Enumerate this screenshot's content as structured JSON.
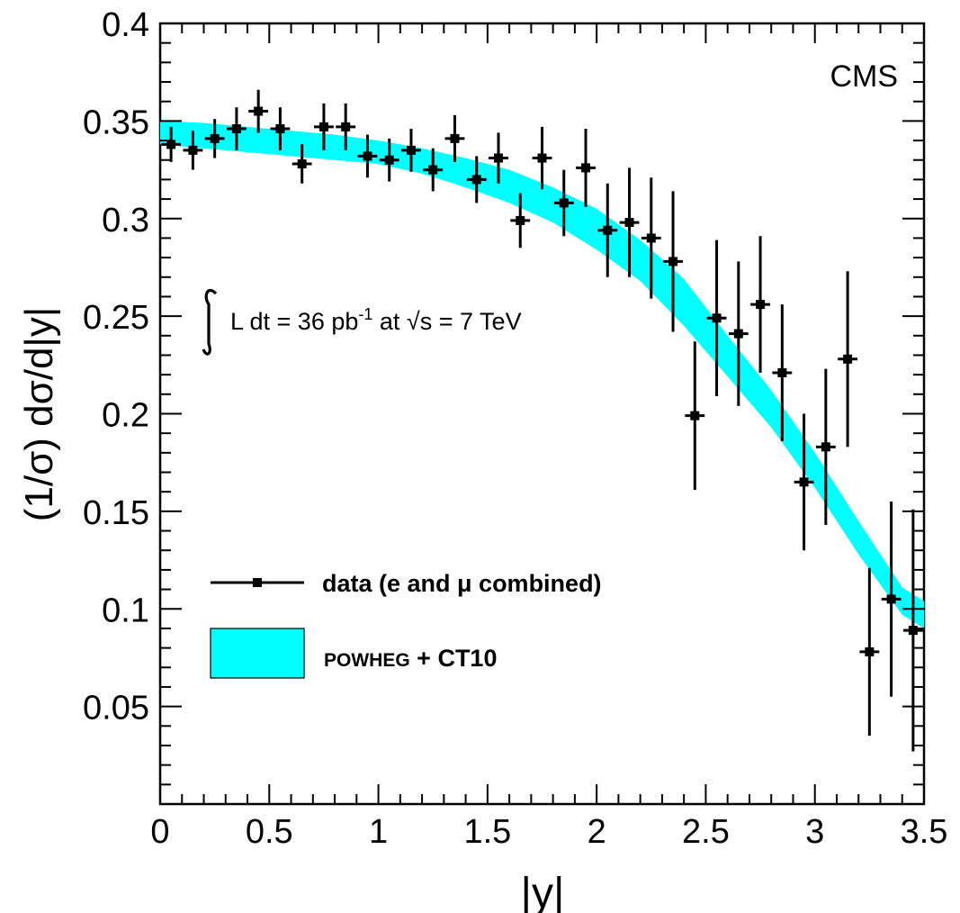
{
  "chart_data": {
    "type": "scatter",
    "title": "",
    "xlabel": "|y|",
    "ylabel": "(1/σ) dσ/d|y|",
    "xlim": [
      0,
      3.5
    ],
    "ylim": [
      0,
      0.4
    ],
    "xticks": [
      "0",
      "0.5",
      "1",
      "1.5",
      "2",
      "2.5",
      "3",
      "3.5"
    ],
    "yticks": [
      "0.05",
      "0.1",
      "0.15",
      "0.2",
      "0.25",
      "0.3",
      "0.35",
      "0.4"
    ],
    "annotation_cms": "CMS",
    "annotation_lumi": {
      "prefix": "L dt = 36 pb",
      "exponent": "-1",
      "middle": " at ",
      "sqrt": "√",
      "suffix": "s = 7 TeV"
    },
    "legend": {
      "placement": "lower-left",
      "data_label": "data (e and μ combined)",
      "band_label_small": "POWHEG",
      "band_label_rest": " + CT10"
    },
    "band_color": "#00ffff",
    "series": [
      {
        "name": "data (e and μ combined)",
        "x": [
          0.05,
          0.15,
          0.25,
          0.35,
          0.45,
          0.55,
          0.65,
          0.75,
          0.85,
          0.95,
          1.05,
          1.15,
          1.25,
          1.35,
          1.45,
          1.55,
          1.65,
          1.75,
          1.85,
          1.95,
          2.05,
          2.15,
          2.25,
          2.35,
          2.45,
          2.55,
          2.65,
          2.75,
          2.85,
          2.95,
          3.05,
          3.15,
          3.25,
          3.35,
          3.45
        ],
        "y": [
          0.338,
          0.335,
          0.341,
          0.346,
          0.355,
          0.346,
          0.328,
          0.347,
          0.347,
          0.332,
          0.33,
          0.335,
          0.325,
          0.341,
          0.32,
          0.331,
          0.299,
          0.331,
          0.308,
          0.326,
          0.294,
          0.298,
          0.29,
          0.278,
          0.199,
          0.249,
          0.241,
          0.256,
          0.221,
          0.165,
          0.183,
          0.228,
          0.078,
          0.105,
          0.089
        ],
        "yerr": [
          0.009,
          0.01,
          0.01,
          0.011,
          0.011,
          0.011,
          0.01,
          0.012,
          0.012,
          0.011,
          0.011,
          0.011,
          0.011,
          0.012,
          0.012,
          0.013,
          0.014,
          0.016,
          0.017,
          0.02,
          0.024,
          0.028,
          0.031,
          0.036,
          0.038,
          0.04,
          0.037,
          0.035,
          0.035,
          0.035,
          0.04,
          0.045,
          0.043,
          0.05,
          0.062
        ]
      },
      {
        "name": "POWHEG + CT10",
        "x": [
          0.0,
          0.2,
          0.4,
          0.6,
          0.8,
          1.0,
          1.2,
          1.4,
          1.6,
          1.8,
          2.0,
          2.2,
          2.4,
          2.6,
          2.8,
          3.0,
          3.2,
          3.4,
          3.5
        ],
        "upper": [
          0.35,
          0.349,
          0.347,
          0.345,
          0.343,
          0.34,
          0.336,
          0.331,
          0.325,
          0.316,
          0.305,
          0.289,
          0.269,
          0.24,
          0.212,
          0.18,
          0.145,
          0.111,
          0.104
        ],
        "lower": [
          0.338,
          0.336,
          0.334,
          0.332,
          0.33,
          0.328,
          0.323,
          0.316,
          0.308,
          0.298,
          0.284,
          0.268,
          0.245,
          0.219,
          0.193,
          0.162,
          0.128,
          0.097,
          0.09
        ]
      }
    ]
  }
}
